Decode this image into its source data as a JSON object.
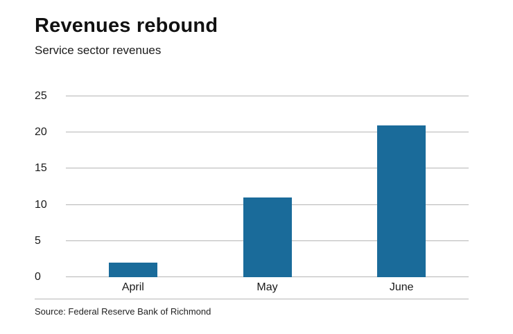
{
  "header": {
    "title": "Revenues rebound",
    "subtitle": "Service sector revenues"
  },
  "source": "Source: Federal Reserve Bank of Richmond",
  "colors": {
    "bar": "#1a6b9a",
    "gridline": "#b5b5b5"
  },
  "chart_data": {
    "type": "bar",
    "title": "Revenues rebound",
    "subtitle": "Service sector revenues",
    "categories": [
      "April",
      "May",
      "June"
    ],
    "values": [
      2,
      11,
      21
    ],
    "xlabel": "",
    "ylabel": "",
    "ylim": [
      0,
      25
    ],
    "yticks": [
      0,
      5,
      10,
      15,
      20,
      25
    ],
    "grid": true,
    "legend_position": "none",
    "bar_color": "#1a6b9a",
    "gridline_color": "#b5b5b5",
    "source": "Source: Federal Reserve Bank of Richmond"
  }
}
